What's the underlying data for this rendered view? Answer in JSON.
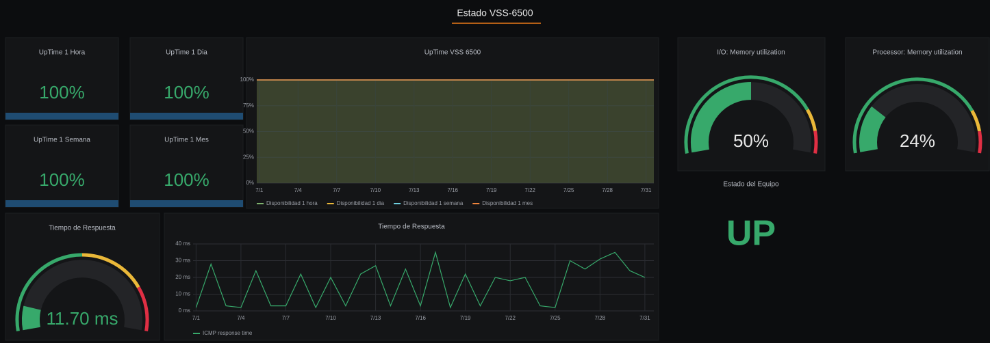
{
  "title": "Estado VSS-6500",
  "stats": [
    {
      "title": "UpTime 1 Hora",
      "value": "100%"
    },
    {
      "title": "UpTime 1 Dia",
      "value": "100%"
    },
    {
      "title": "UpTime 1 Semana",
      "value": "100%"
    },
    {
      "title": "UpTime 1 Mes",
      "value": "100%"
    }
  ],
  "uptime_chart": {
    "type": "line",
    "title": "UpTime VSS 6500",
    "x": [
      0.8,
      31.6
    ],
    "series": [
      {
        "name": "Disponibilidad 1 hora",
        "color": "#7eb26d",
        "values": [
          100,
          100
        ]
      },
      {
        "name": "Disponibilidad 1 dia",
        "color": "#eab839",
        "values": [
          100,
          100
        ]
      },
      {
        "name": "Disponibilidad 1 semana",
        "color": "#6ed0e0",
        "values": [
          100,
          100
        ]
      },
      {
        "name": "Disponibilidad 1 mes",
        "color": "#ef843c",
        "values": [
          100,
          100
        ]
      }
    ],
    "xlim": [
      0.8,
      31.6
    ],
    "xticks": [
      {
        "value": 1,
        "label": "7/1"
      },
      {
        "value": 4,
        "label": "7/4"
      },
      {
        "value": 7,
        "label": "7/7"
      },
      {
        "value": 10,
        "label": "7/10"
      },
      {
        "value": 13,
        "label": "7/13"
      },
      {
        "value": 16,
        "label": "7/16"
      },
      {
        "value": 19,
        "label": "7/19"
      },
      {
        "value": 22,
        "label": "7/22"
      },
      {
        "value": 25,
        "label": "7/25"
      },
      {
        "value": 28,
        "label": "7/28"
      },
      {
        "value": 31,
        "label": "7/31"
      }
    ],
    "ylim": [
      0,
      100
    ],
    "yticks": [
      {
        "value": 0,
        "label": "0%"
      },
      {
        "value": 25,
        "label": "25%"
      },
      {
        "value": 50,
        "label": "50%"
      },
      {
        "value": 75,
        "label": "75%"
      },
      {
        "value": 100,
        "label": "100%"
      }
    ],
    "grid": true,
    "fill": true
  },
  "gauges": [
    {
      "title": "I/O: Memory utilization",
      "value": 50,
      "value_label": "50%",
      "min": 0,
      "max": 100,
      "thresholds": [
        {
          "value": 0,
          "color": "#37a96b"
        },
        {
          "value": 80,
          "color": "#eab839"
        },
        {
          "value": 90,
          "color": "#e02f44"
        }
      ]
    },
    {
      "title": "Processor: Memory utilization",
      "value": 24,
      "value_label": "24%",
      "min": 0,
      "max": 100,
      "thresholds": [
        {
          "value": 0,
          "color": "#37a96b"
        },
        {
          "value": 80,
          "color": "#eab839"
        },
        {
          "value": 90,
          "color": "#e02f44"
        }
      ]
    },
    {
      "title": "Tiempo de Respuesta",
      "value": 11.7,
      "value_label": "11.70 ms",
      "min": 0,
      "max": 100,
      "thresholds": [
        {
          "value": 0,
          "color": "#37a96b"
        },
        {
          "value": 50,
          "color": "#eab839"
        },
        {
          "value": 80,
          "color": "#e02f44"
        }
      ]
    }
  ],
  "status": {
    "title": "Estado del Equipo",
    "value": "UP"
  },
  "response_chart": {
    "type": "line",
    "title": "Tiempo de Respuesta",
    "x": [
      1,
      2,
      3,
      4,
      5,
      6,
      7,
      8,
      9,
      10,
      11,
      12,
      13,
      14,
      15,
      16,
      17,
      18,
      19,
      20,
      21,
      22,
      23,
      24,
      25,
      26,
      27,
      28,
      29,
      30,
      31
    ],
    "series": [
      {
        "name": "ICMP response time",
        "color": "#37a96b",
        "values": [
          2,
          28,
          3,
          2,
          24,
          3,
          3,
          22,
          2,
          20,
          3,
          22,
          27,
          3,
          25,
          3,
          35,
          2,
          22,
          3,
          20,
          18,
          20,
          3,
          2,
          30,
          25,
          31,
          35,
          24,
          20
        ]
      }
    ],
    "xlim": [
      0.8,
      31.6
    ],
    "xticks": [
      {
        "value": 1,
        "label": "7/1"
      },
      {
        "value": 4,
        "label": "7/4"
      },
      {
        "value": 7,
        "label": "7/7"
      },
      {
        "value": 10,
        "label": "7/10"
      },
      {
        "value": 13,
        "label": "7/13"
      },
      {
        "value": 16,
        "label": "7/16"
      },
      {
        "value": 19,
        "label": "7/19"
      },
      {
        "value": 22,
        "label": "7/22"
      },
      {
        "value": 25,
        "label": "7/25"
      },
      {
        "value": 28,
        "label": "7/28"
      },
      {
        "value": 31,
        "label": "7/31"
      }
    ],
    "ylim": [
      0,
      40
    ],
    "yticks": [
      {
        "value": 0,
        "label": "0 ms"
      },
      {
        "value": 10,
        "label": "10 ms"
      },
      {
        "value": 20,
        "label": "20 ms"
      },
      {
        "value": 30,
        "label": "30 ms"
      },
      {
        "value": 40,
        "label": "40 ms"
      }
    ],
    "grid": true,
    "fill": false
  }
}
